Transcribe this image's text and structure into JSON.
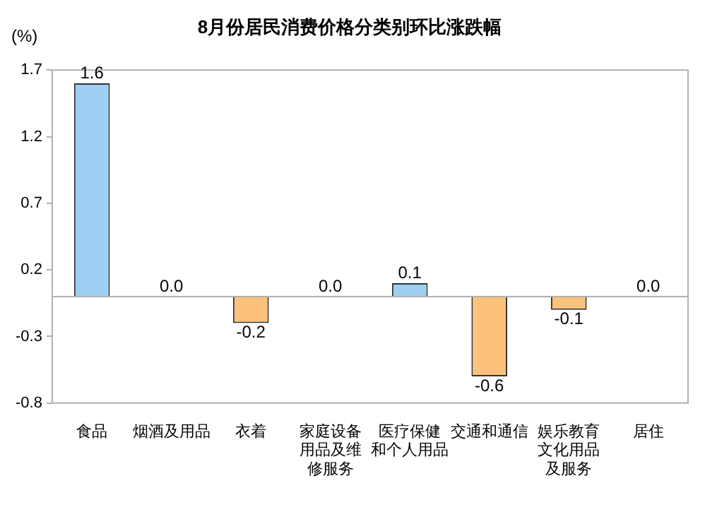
{
  "chart_data": {
    "type": "bar",
    "title": "8月份居民消费价格分类别环比涨跌幅",
    "ylabel": "(%)",
    "categories": [
      "食品",
      "烟酒及用品",
      "衣着",
      "家庭设备用品及维修服务",
      "医疗保健和个人用品",
      "交通和通信",
      "娱乐教育文化用品及服务",
      "居住"
    ],
    "values": [
      1.6,
      0.0,
      -0.2,
      0.0,
      0.1,
      -0.6,
      -0.1,
      0.0
    ],
    "value_labels": [
      "1.6",
      "0.0",
      "-0.2",
      "0.0",
      "0.1",
      "-0.6",
      "-0.1",
      "0.0"
    ],
    "colors": [
      "#9dd0f2",
      "#9dd0f2",
      "#fcc27c",
      "#9dd0f2",
      "#9dd0f2",
      "#fcc27c",
      "#fcc27c",
      "#9dd0f2"
    ],
    "ylim": [
      -0.8,
      1.7
    ],
    "yticks": [
      1.7,
      1.2,
      0.7,
      0.2,
      -0.3,
      -0.8
    ],
    "grid": false,
    "legend": false
  }
}
